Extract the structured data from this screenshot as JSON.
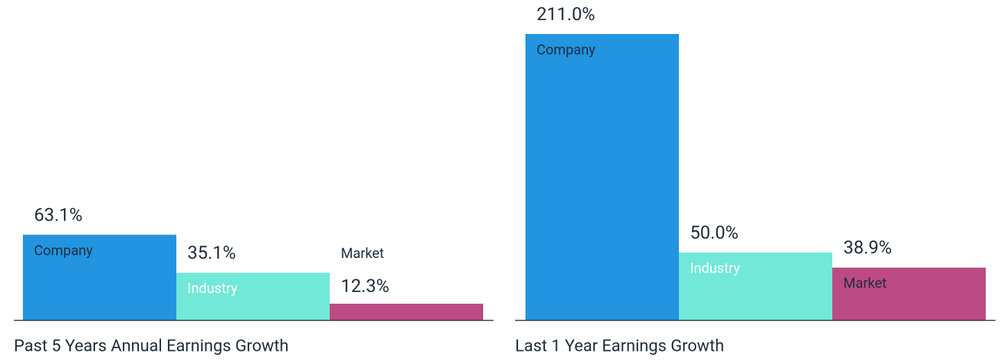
{
  "chart_data": [
    {
      "type": "bar",
      "title": "Past 5 Years Annual Earnings Growth",
      "categories": [
        "Company",
        "Industry",
        "Market"
      ],
      "values": [
        63.1,
        35.1,
        12.3
      ],
      "value_labels": [
        "63.1%",
        "35.1%",
        "12.3%"
      ],
      "colors": [
        "#2394df",
        "#71e8d8",
        "#bc4a83"
      ]
    },
    {
      "type": "bar",
      "title": "Last 1 Year Earnings Growth",
      "categories": [
        "Company",
        "Industry",
        "Market"
      ],
      "values": [
        211.0,
        50.0,
        38.9
      ],
      "value_labels": [
        "211.0%",
        "50.0%",
        "38.9%"
      ],
      "colors": [
        "#2394df",
        "#71e8d8",
        "#bc4a83"
      ]
    }
  ]
}
